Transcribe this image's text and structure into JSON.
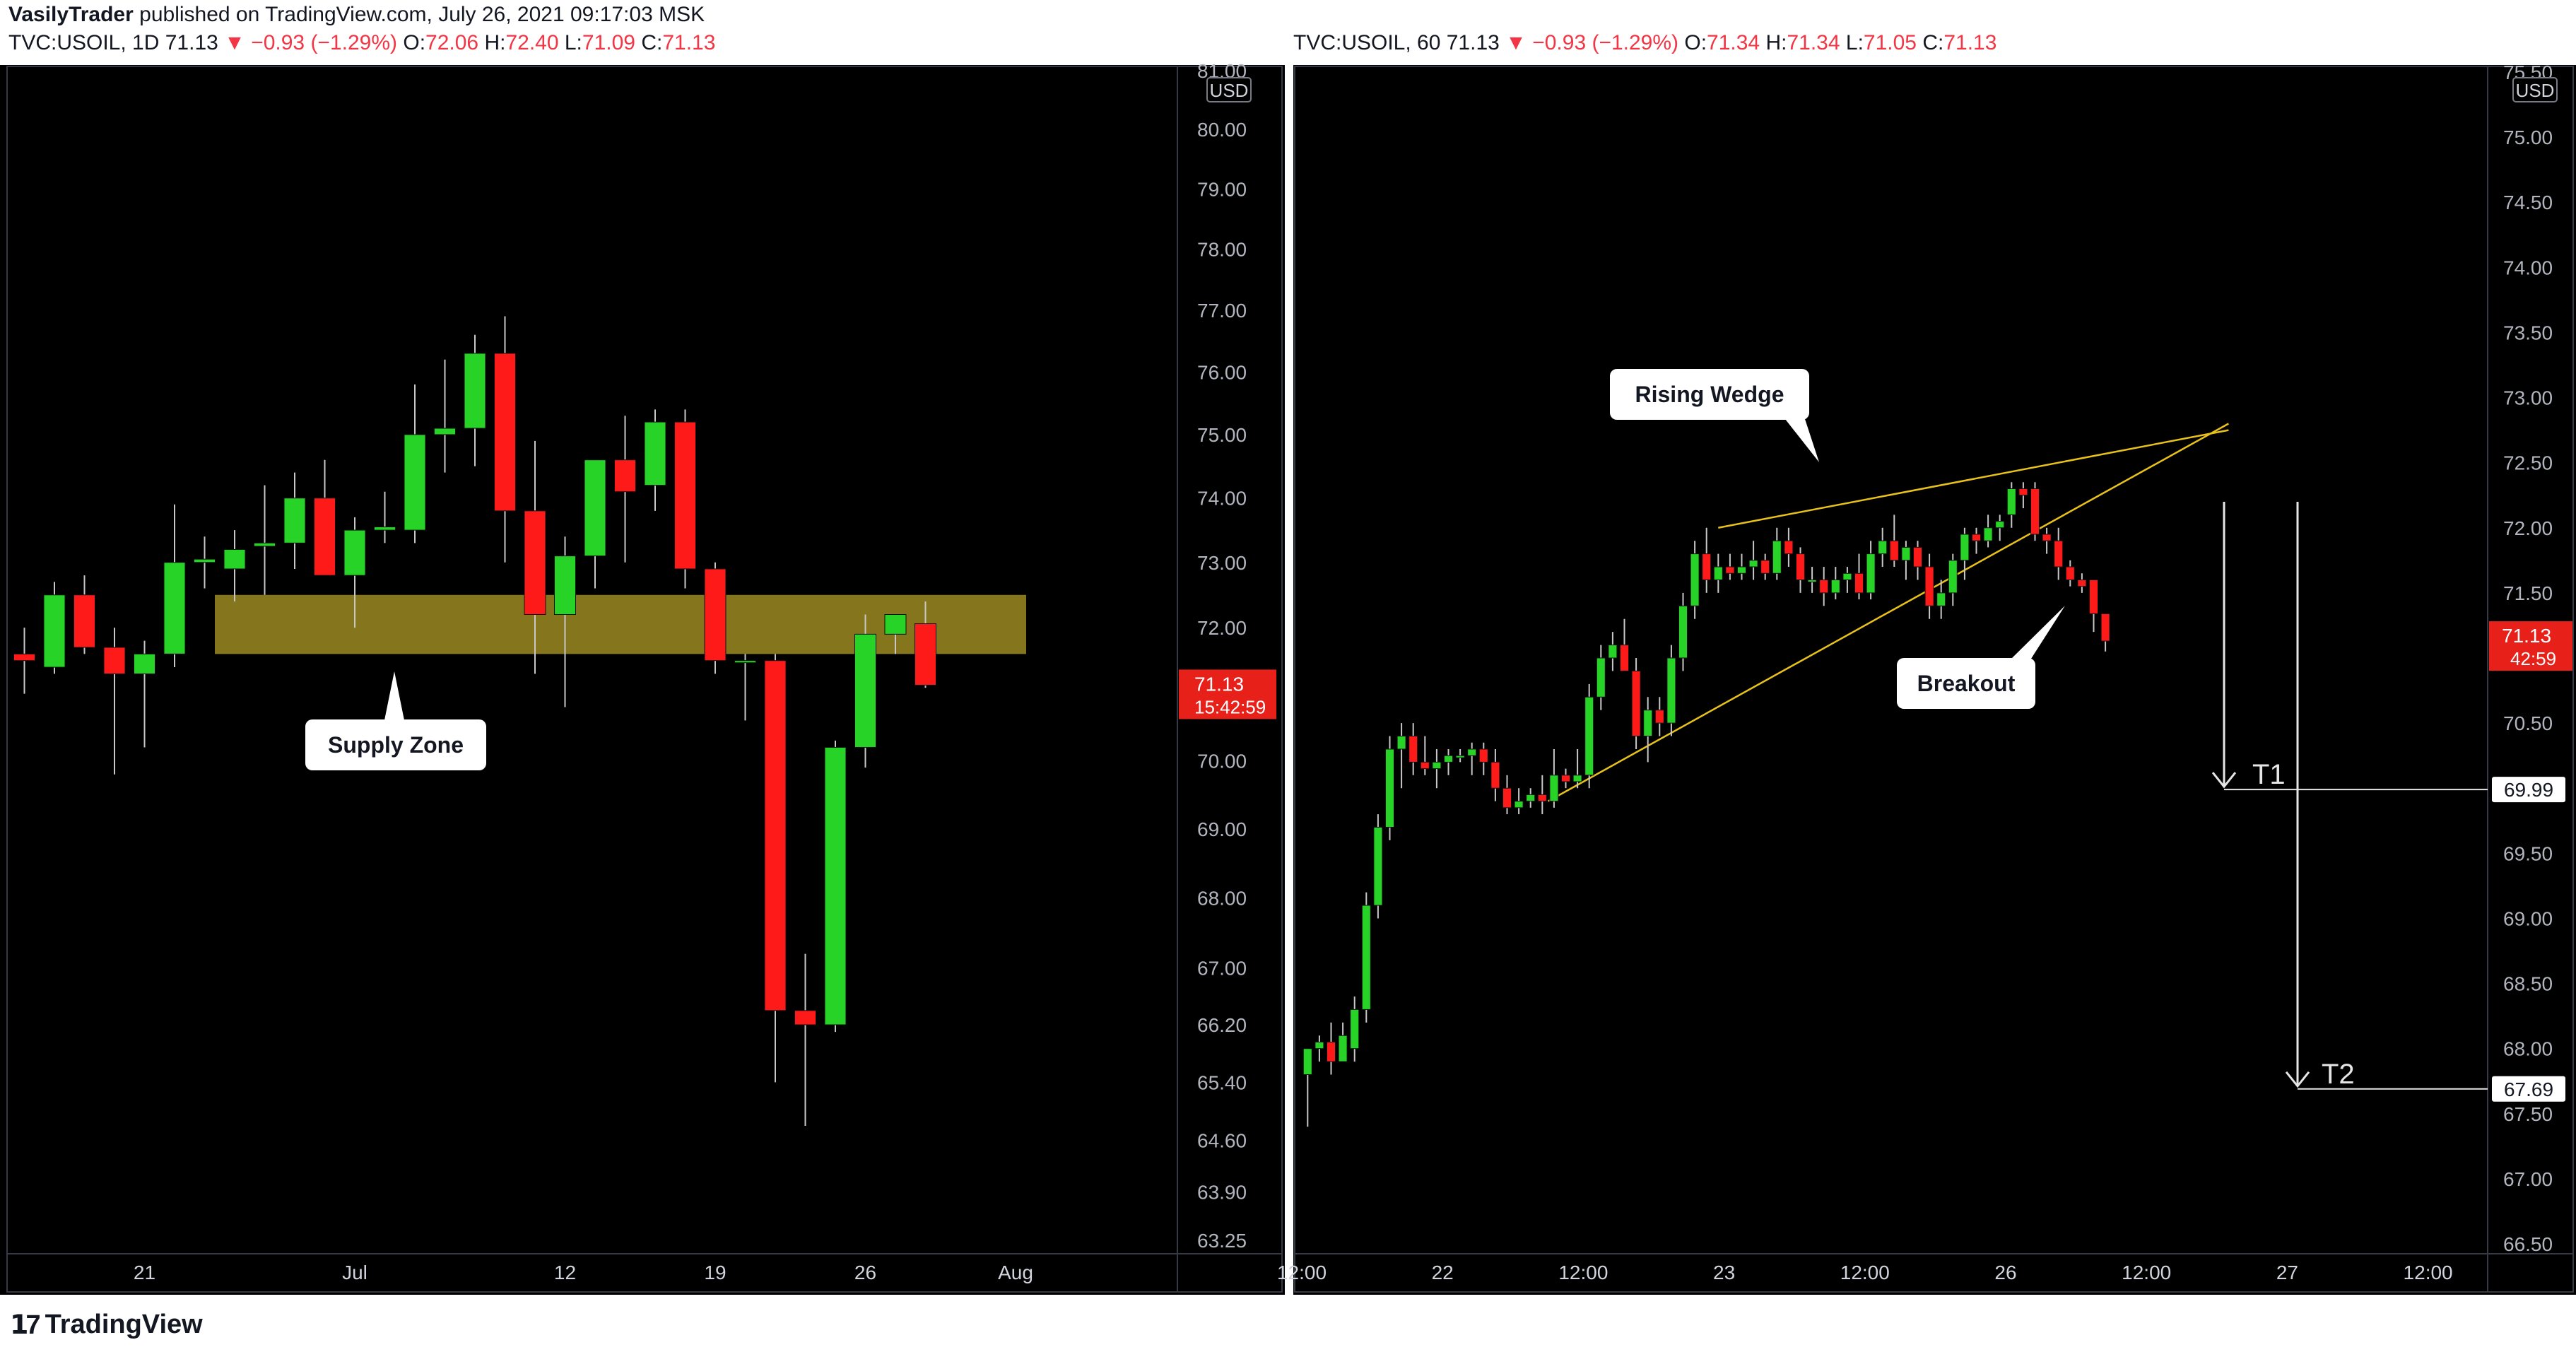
{
  "header": {
    "publisher": "VasilyTrader",
    "published_text": "published on TradingView.com, July 26, 2021 09:17:03 MSK",
    "left": {
      "symbol": "TVC:USOIL, 1D",
      "last": "71.13",
      "change": "−0.93 (−1.29%)",
      "o_label": "O:",
      "o": "72.06",
      "h_label": "H:",
      "h": "72.40",
      "l_label": "L:",
      "l": "71.09",
      "c_label": "C:",
      "c": "71.13"
    },
    "right": {
      "symbol": "TVC:USOIL, 60",
      "last": "71.13",
      "change": "−0.93 (−1.29%)",
      "o_label": "O:",
      "o": "71.34",
      "h_label": "H:",
      "h": "71.34",
      "l_label": "L:",
      "l": "71.05",
      "c_label": "C:",
      "c": "71.13"
    }
  },
  "footer": {
    "brand": "TradingView"
  },
  "colors": {
    "up": "#27d327",
    "down": "#ff1a1a",
    "zone": "#8c7c20",
    "wedge": "#e8c21a",
    "price_tag": "#e8201a"
  },
  "chart_data": [
    {
      "type": "candlestick",
      "panel": "left",
      "currency": "USD",
      "y_scale": "log",
      "y_ticks": [
        "81.00",
        "80.00",
        "79.00",
        "78.00",
        "77.00",
        "76.00",
        "75.00",
        "74.00",
        "73.00",
        "72.00",
        "71.00",
        "70.00",
        "69.00",
        "68.00",
        "67.00",
        "66.20",
        "65.40",
        "64.60",
        "63.90",
        "63.25"
      ],
      "x_ticks": [
        {
          "label": "21",
          "i": 4
        },
        {
          "label": "Jul",
          "i": 11
        },
        {
          "label": "12",
          "i": 18
        },
        {
          "label": "19",
          "i": 23
        },
        {
          "label": "26",
          "i": 28
        },
        {
          "label": "Aug",
          "i": 33
        }
      ],
      "last_price_tag": {
        "price": "71.13",
        "countdown": "15:42:59"
      },
      "candles": [
        {
          "o": 71.6,
          "h": 72.0,
          "l": 71.0,
          "c": 71.5
        },
        {
          "o": 71.4,
          "h": 72.7,
          "l": 71.3,
          "c": 72.5
        },
        {
          "o": 72.5,
          "h": 72.8,
          "l": 71.6,
          "c": 71.7
        },
        {
          "o": 71.7,
          "h": 72.0,
          "l": 69.8,
          "c": 71.3
        },
        {
          "o": 71.3,
          "h": 71.8,
          "l": 70.2,
          "c": 71.6
        },
        {
          "o": 71.6,
          "h": 73.9,
          "l": 71.4,
          "c": 73.0
        },
        {
          "o": 73.0,
          "h": 73.4,
          "l": 72.6,
          "c": 73.05
        },
        {
          "o": 72.9,
          "h": 73.5,
          "l": 72.4,
          "c": 73.2
        },
        {
          "o": 73.25,
          "h": 74.2,
          "l": 72.5,
          "c": 73.3
        },
        {
          "o": 73.3,
          "h": 74.4,
          "l": 72.9,
          "c": 74.0
        },
        {
          "o": 74.0,
          "h": 74.6,
          "l": 72.8,
          "c": 72.8
        },
        {
          "o": 72.8,
          "h": 73.7,
          "l": 72.0,
          "c": 73.5
        },
        {
          "o": 73.5,
          "h": 74.1,
          "l": 73.3,
          "c": 73.55
        },
        {
          "o": 73.5,
          "h": 75.8,
          "l": 73.3,
          "c": 75.0
        },
        {
          "o": 75.0,
          "h": 76.2,
          "l": 74.4,
          "c": 75.1
        },
        {
          "o": 75.1,
          "h": 76.6,
          "l": 74.5,
          "c": 76.3
        },
        {
          "o": 76.3,
          "h": 76.9,
          "l": 73.0,
          "c": 73.8
        },
        {
          "o": 73.8,
          "h": 74.9,
          "l": 71.3,
          "c": 72.2
        },
        {
          "o": 72.2,
          "h": 73.4,
          "l": 70.8,
          "c": 73.1
        },
        {
          "o": 73.1,
          "h": 74.6,
          "l": 72.6,
          "c": 74.6
        },
        {
          "o": 74.6,
          "h": 75.3,
          "l": 73.0,
          "c": 74.1
        },
        {
          "o": 74.2,
          "h": 75.4,
          "l": 73.8,
          "c": 75.2
        },
        {
          "o": 75.2,
          "h": 75.4,
          "l": 72.6,
          "c": 72.9
        },
        {
          "o": 72.9,
          "h": 73.0,
          "l": 71.3,
          "c": 71.5
        },
        {
          "o": 71.5,
          "h": 71.6,
          "l": 70.6,
          "c": 71.5
        },
        {
          "o": 71.5,
          "h": 71.6,
          "l": 65.4,
          "c": 66.4
        },
        {
          "o": 66.4,
          "h": 67.2,
          "l": 64.8,
          "c": 66.2
        },
        {
          "o": 66.2,
          "h": 70.3,
          "l": 66.1,
          "c": 70.2
        },
        {
          "o": 70.2,
          "h": 72.2,
          "l": 69.9,
          "c": 71.9
        },
        {
          "o": 71.9,
          "h": 72.2,
          "l": 71.6,
          "c": 72.2
        },
        {
          "o": 72.06,
          "h": 72.4,
          "l": 71.09,
          "c": 71.13
        }
      ],
      "annotations": [
        {
          "text": "Supply Zone"
        }
      ],
      "zone": {
        "from": 71.6,
        "to": 72.5
      }
    },
    {
      "type": "candlestick",
      "panel": "right",
      "currency": "USD",
      "y_ticks": [
        "75.50",
        "75.00",
        "74.50",
        "74.00",
        "73.50",
        "73.00",
        "72.50",
        "72.00",
        "71.50",
        "71.00",
        "70.50",
        "70.00",
        "69.50",
        "69.00",
        "68.50",
        "68.00",
        "67.50",
        "67.00",
        "66.50"
      ],
      "x_ticks": [
        {
          "label": "12:00",
          "t": 0
        },
        {
          "label": "22",
          "t": 12
        },
        {
          "label": "12:00",
          "t": 24
        },
        {
          "label": "23",
          "t": 36
        },
        {
          "label": "12:00",
          "t": 48
        },
        {
          "label": "26",
          "t": 60
        },
        {
          "label": "12:00",
          "t": 72
        },
        {
          "label": "27",
          "t": 84
        },
        {
          "label": "12:00",
          "t": 96
        }
      ],
      "last_price_tag": {
        "price": "71.13",
        "countdown": "42:59"
      },
      "target_tags": [
        {
          "label": "T1",
          "price": "69.99"
        },
        {
          "label": "T2",
          "price": "67.69"
        }
      ],
      "annotations": [
        {
          "text": "Rising Wedge"
        },
        {
          "text": "Breakout"
        }
      ],
      "candles": [
        {
          "t": 0.5,
          "o": 67.8,
          "h": 68.0,
          "l": 67.4,
          "c": 68.0
        },
        {
          "t": 1.5,
          "o": 68.0,
          "h": 68.1,
          "l": 67.9,
          "c": 68.05
        },
        {
          "t": 2.5,
          "o": 68.05,
          "h": 68.2,
          "l": 67.8,
          "c": 67.9
        },
        {
          "t": 3.5,
          "o": 67.9,
          "h": 68.2,
          "l": 67.9,
          "c": 68.1
        },
        {
          "t": 4.5,
          "o": 68.0,
          "h": 68.4,
          "l": 67.9,
          "c": 68.3
        },
        {
          "t": 5.5,
          "o": 68.3,
          "h": 69.2,
          "l": 68.2,
          "c": 69.1
        },
        {
          "t": 6.5,
          "o": 69.1,
          "h": 69.8,
          "l": 69.0,
          "c": 69.7
        },
        {
          "t": 7.5,
          "o": 69.7,
          "h": 70.4,
          "l": 69.6,
          "c": 70.3
        },
        {
          "t": 8.5,
          "o": 70.3,
          "h": 70.5,
          "l": 70.0,
          "c": 70.4
        },
        {
          "t": 9.5,
          "o": 70.4,
          "h": 70.5,
          "l": 70.1,
          "c": 70.2
        },
        {
          "t": 10.5,
          "o": 70.2,
          "h": 70.4,
          "l": 70.1,
          "c": 70.15
        },
        {
          "t": 11.5,
          "o": 70.15,
          "h": 70.3,
          "l": 70.0,
          "c": 70.2
        },
        {
          "t": 12.5,
          "o": 70.2,
          "h": 70.3,
          "l": 70.1,
          "c": 70.25
        },
        {
          "t": 13.5,
          "o": 70.25,
          "h": 70.3,
          "l": 70.2,
          "c": 70.25
        },
        {
          "t": 14.5,
          "o": 70.25,
          "h": 70.35,
          "l": 70.1,
          "c": 70.3
        },
        {
          "t": 15.5,
          "o": 70.3,
          "h": 70.35,
          "l": 70.1,
          "c": 70.2
        },
        {
          "t": 16.5,
          "o": 70.2,
          "h": 70.3,
          "l": 69.9,
          "c": 70.0
        },
        {
          "t": 17.5,
          "o": 70.0,
          "h": 70.1,
          "l": 69.8,
          "c": 69.85
        },
        {
          "t": 18.5,
          "o": 69.85,
          "h": 70.0,
          "l": 69.8,
          "c": 69.9
        },
        {
          "t": 19.5,
          "o": 69.9,
          "h": 70.0,
          "l": 69.85,
          "c": 69.95
        },
        {
          "t": 20.5,
          "o": 69.95,
          "h": 70.1,
          "l": 69.8,
          "c": 69.9
        },
        {
          "t": 21.5,
          "o": 69.9,
          "h": 70.3,
          "l": 69.85,
          "c": 70.1
        },
        {
          "t": 22.5,
          "o": 70.1,
          "h": 70.15,
          "l": 70.0,
          "c": 70.05
        },
        {
          "t": 23.5,
          "o": 70.05,
          "h": 70.3,
          "l": 70.0,
          "c": 70.1
        },
        {
          "t": 24.5,
          "o": 70.1,
          "h": 70.8,
          "l": 70.0,
          "c": 70.7
        },
        {
          "t": 25.5,
          "o": 70.7,
          "h": 71.1,
          "l": 70.6,
          "c": 71.0
        },
        {
          "t": 26.5,
          "o": 71.0,
          "h": 71.2,
          "l": 70.9,
          "c": 71.1
        },
        {
          "t": 27.5,
          "o": 71.1,
          "h": 71.3,
          "l": 70.9,
          "c": 70.9
        },
        {
          "t": 28.5,
          "o": 70.9,
          "h": 71.0,
          "l": 70.3,
          "c": 70.4
        },
        {
          "t": 29.5,
          "o": 70.4,
          "h": 70.7,
          "l": 70.2,
          "c": 70.6
        },
        {
          "t": 30.5,
          "o": 70.6,
          "h": 70.7,
          "l": 70.4,
          "c": 70.5
        },
        {
          "t": 31.5,
          "o": 70.5,
          "h": 71.1,
          "l": 70.4,
          "c": 71.0
        },
        {
          "t": 32.5,
          "o": 71.0,
          "h": 71.5,
          "l": 70.9,
          "c": 71.4
        },
        {
          "t": 33.5,
          "o": 71.4,
          "h": 71.9,
          "l": 71.3,
          "c": 71.8
        },
        {
          "t": 34.5,
          "o": 71.8,
          "h": 72.0,
          "l": 71.5,
          "c": 71.6
        },
        {
          "t": 35.5,
          "o": 71.6,
          "h": 71.8,
          "l": 71.5,
          "c": 71.7
        },
        {
          "t": 36.5,
          "o": 71.7,
          "h": 71.8,
          "l": 71.6,
          "c": 71.65
        },
        {
          "t": 37.5,
          "o": 71.65,
          "h": 71.8,
          "l": 71.6,
          "c": 71.7
        },
        {
          "t": 38.5,
          "o": 71.7,
          "h": 71.9,
          "l": 71.6,
          "c": 71.75
        },
        {
          "t": 39.5,
          "o": 71.75,
          "h": 71.8,
          "l": 71.6,
          "c": 71.65
        },
        {
          "t": 40.5,
          "o": 71.65,
          "h": 72.0,
          "l": 71.6,
          "c": 71.9
        },
        {
          "t": 41.5,
          "o": 71.9,
          "h": 72.0,
          "l": 71.7,
          "c": 71.8
        },
        {
          "t": 42.5,
          "o": 71.8,
          "h": 71.85,
          "l": 71.5,
          "c": 71.6
        },
        {
          "t": 43.5,
          "o": 71.6,
          "h": 71.7,
          "l": 71.5,
          "c": 71.6
        },
        {
          "t": 44.5,
          "o": 71.6,
          "h": 71.7,
          "l": 71.4,
          "c": 71.5
        },
        {
          "t": 45.5,
          "o": 71.5,
          "h": 71.7,
          "l": 71.45,
          "c": 71.6
        },
        {
          "t": 46.5,
          "o": 71.6,
          "h": 71.7,
          "l": 71.5,
          "c": 71.65
        },
        {
          "t": 47.5,
          "o": 71.65,
          "h": 71.8,
          "l": 71.45,
          "c": 71.5
        },
        {
          "t": 48.5,
          "o": 71.5,
          "h": 71.9,
          "l": 71.45,
          "c": 71.8
        },
        {
          "t": 49.5,
          "o": 71.8,
          "h": 72.0,
          "l": 71.7,
          "c": 71.9
        },
        {
          "t": 50.5,
          "o": 71.9,
          "h": 72.1,
          "l": 71.7,
          "c": 71.75
        },
        {
          "t": 51.5,
          "o": 71.75,
          "h": 71.9,
          "l": 71.6,
          "c": 71.85
        },
        {
          "t": 52.5,
          "o": 71.85,
          "h": 71.9,
          "l": 71.6,
          "c": 71.7
        },
        {
          "t": 53.5,
          "o": 71.7,
          "h": 71.8,
          "l": 71.3,
          "c": 71.4
        },
        {
          "t": 54.5,
          "o": 71.4,
          "h": 71.6,
          "l": 71.3,
          "c": 71.5
        },
        {
          "t": 55.5,
          "o": 71.5,
          "h": 71.8,
          "l": 71.4,
          "c": 71.75
        },
        {
          "t": 56.5,
          "o": 71.75,
          "h": 72.0,
          "l": 71.6,
          "c": 71.95
        },
        {
          "t": 57.5,
          "o": 71.95,
          "h": 72.0,
          "l": 71.8,
          "c": 71.9
        },
        {
          "t": 58.5,
          "o": 71.9,
          "h": 72.1,
          "l": 71.85,
          "c": 72.0
        },
        {
          "t": 59.5,
          "o": 72.0,
          "h": 72.1,
          "l": 71.9,
          "c": 72.05
        },
        {
          "t": 60.5,
          "o": 72.1,
          "h": 72.35,
          "l": 72.0,
          "c": 72.3
        },
        {
          "t": 61.5,
          "o": 72.3,
          "h": 72.35,
          "l": 72.15,
          "c": 72.25
        },
        {
          "t": 62.5,
          "o": 72.3,
          "h": 72.35,
          "l": 71.9,
          "c": 71.95
        },
        {
          "t": 63.5,
          "o": 71.95,
          "h": 72.0,
          "l": 71.8,
          "c": 71.9
        },
        {
          "t": 64.5,
          "o": 71.9,
          "h": 72.0,
          "l": 71.6,
          "c": 71.7
        },
        {
          "t": 65.5,
          "o": 71.7,
          "h": 71.75,
          "l": 71.55,
          "c": 71.6
        },
        {
          "t": 66.5,
          "o": 71.6,
          "h": 71.65,
          "l": 71.5,
          "c": 71.55
        },
        {
          "t": 67.5,
          "o": 71.6,
          "h": 71.6,
          "l": 71.2,
          "c": 71.34
        },
        {
          "t": 68.5,
          "o": 71.34,
          "h": 71.34,
          "l": 71.05,
          "c": 71.13
        }
      ],
      "wedge": {
        "upper": [
          [
            35.5,
            72.0
          ],
          [
            79,
            72.75
          ]
        ],
        "lower": [
          [
            21,
            69.9
          ],
          [
            79,
            72.8
          ]
        ]
      }
    }
  ]
}
